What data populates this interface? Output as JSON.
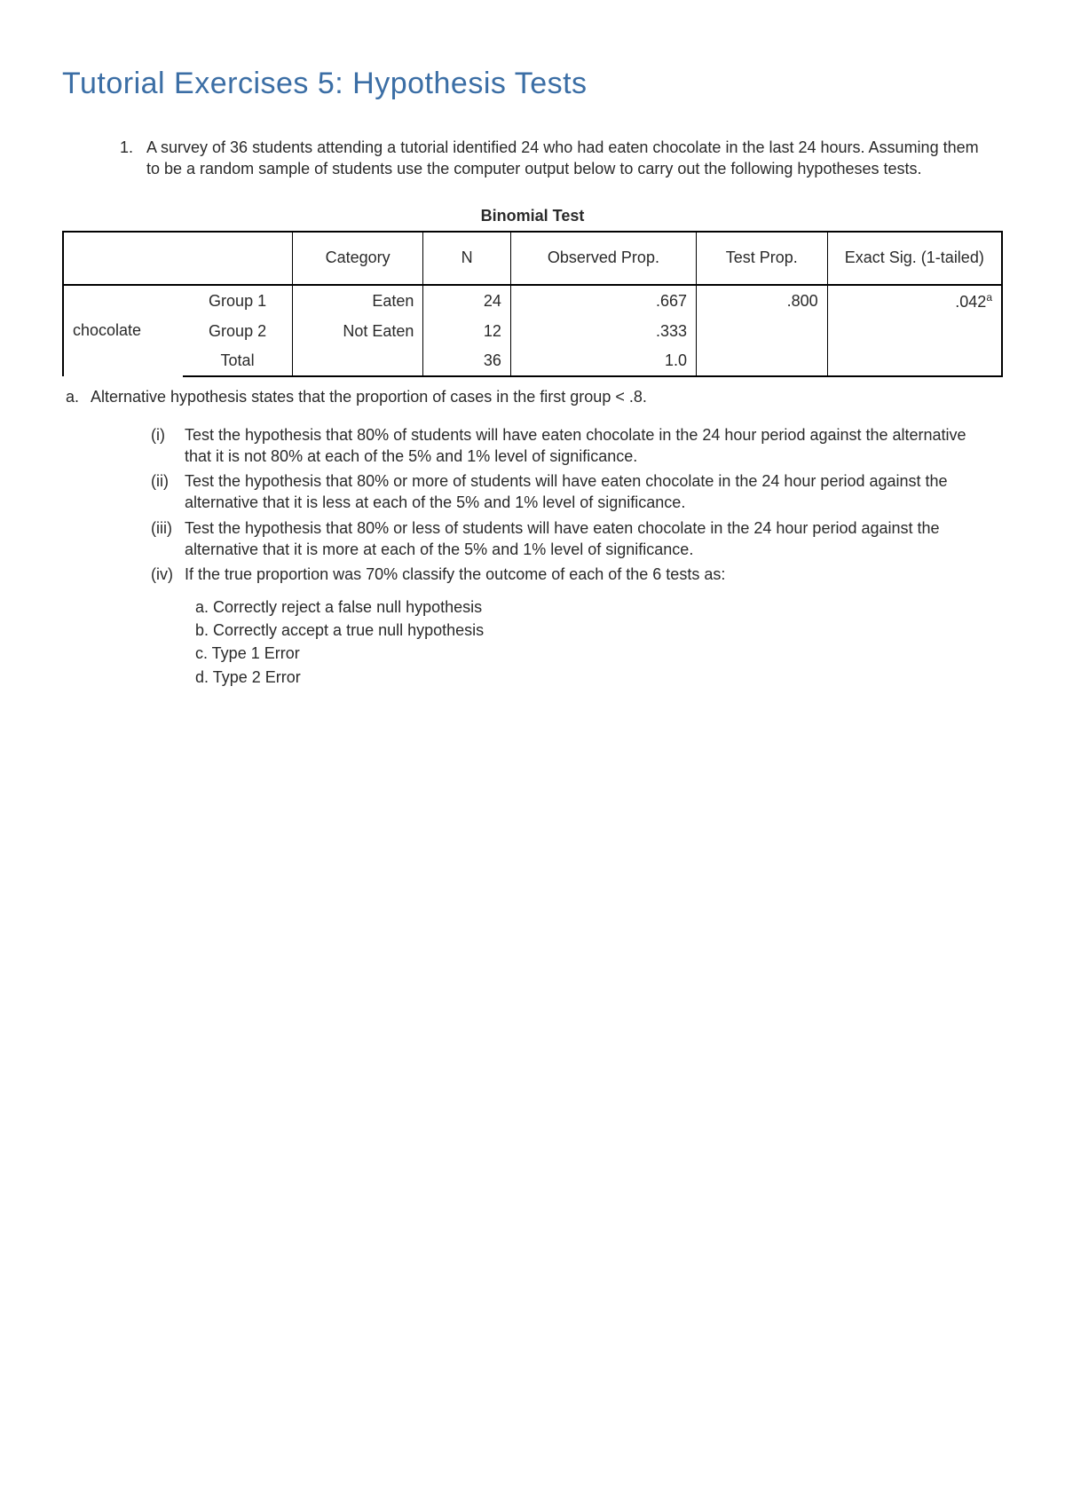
{
  "title": "Tutorial Exercises 5: Hypothesis Tests",
  "title_color": "#3b6ea5",
  "text_color": "#2a2a2a",
  "background_color": "#ffffff",
  "question": {
    "number": "1.",
    "text": "A survey of 36 students attending a tutorial identified 24 who had eaten chocolate in the last 24 hours. Assuming them to be a random sample of students use the computer output below to carry out the following hypotheses tests."
  },
  "table": {
    "type": "table",
    "title": "Binomial Test",
    "columns": [
      "",
      "",
      "Category",
      "N",
      "Observed Prop.",
      "Test Prop.",
      "Exact Sig. (1-tailed)"
    ],
    "row_label": "chocolate",
    "rows": [
      {
        "group": "Group 1",
        "category": "Eaten",
        "n": "24",
        "observed": ".667",
        "test": ".800",
        "sig": ".042",
        "sig_sup": "a"
      },
      {
        "group": "Group 2",
        "category": "Not Eaten",
        "n": "12",
        "observed": ".333",
        "test": "",
        "sig": ""
      },
      {
        "group": "Total",
        "category": "",
        "n": "36",
        "observed": "1.0",
        "test": "",
        "sig": ""
      }
    ],
    "border_color": "#000000",
    "title_fontsize": 18,
    "cell_fontsize": 18
  },
  "footnote": {
    "label": "a.",
    "text": "Alternative hypothesis states that the proportion of cases in the first group < .8."
  },
  "subparts": [
    {
      "num": "(i)",
      "text": "Test the hypothesis that 80% of students will have eaten chocolate in the 24 hour period against the alternative that it is not 80% at each of the 5% and 1% level of significance."
    },
    {
      "num": "(ii)",
      "text": "Test the hypothesis that 80% or more of students will have eaten chocolate in the 24 hour period against the alternative that it is less at each of the 5% and 1% level of significance."
    },
    {
      "num": "(iii)",
      "text": "Test the hypothesis that 80% or less of students will have eaten chocolate in the 24 hour period against the alternative that it is more at each of the 5% and 1% level of significance."
    },
    {
      "num": "(iv)",
      "text": "If the true proportion was 70% classify the outcome of each of the 6 tests as:"
    }
  ],
  "classify": [
    "a. Correctly reject a false null hypothesis",
    "b. Correctly accept a true null hypothesis",
    "c. Type 1 Error",
    "d. Type 2 Error"
  ]
}
